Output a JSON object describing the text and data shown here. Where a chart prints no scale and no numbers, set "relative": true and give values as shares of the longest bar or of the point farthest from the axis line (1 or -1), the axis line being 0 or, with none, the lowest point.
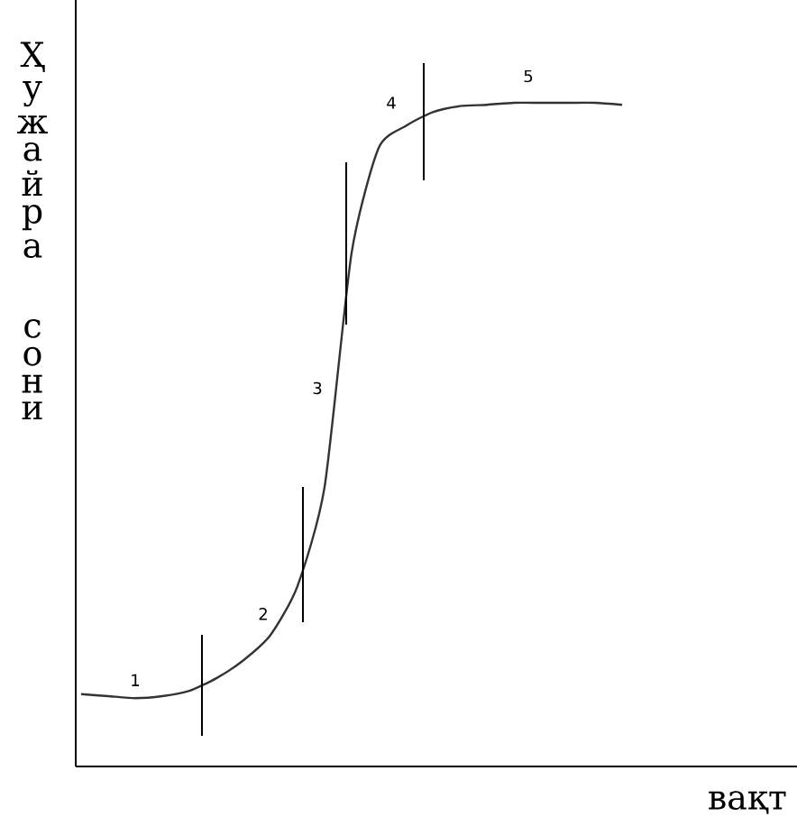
{
  "chart_data": {
    "type": "line",
    "relative": true,
    "xlabel": "вақт",
    "ylabel": "Ҳужайра сони",
    "color": "#333333",
    "marker": "none",
    "categories": [
      null,
      null,
      null,
      null,
      null,
      null,
      null,
      null,
      null,
      null,
      null,
      null,
      null,
      null,
      null,
      null,
      null,
      null,
      null,
      null,
      null
    ],
    "values": [
      0.109,
      0.106,
      0.103,
      0.106,
      0.114,
      0.133,
      0.16,
      0.198,
      0.272,
      0.421,
      0.774,
      0.932,
      0.965,
      0.986,
      0.995,
      0.997,
      1,
      1,
      1,
      1,
      0.997
    ],
    "annotations": [
      "1",
      "2",
      "3",
      "4",
      "5"
    ]
  }
}
